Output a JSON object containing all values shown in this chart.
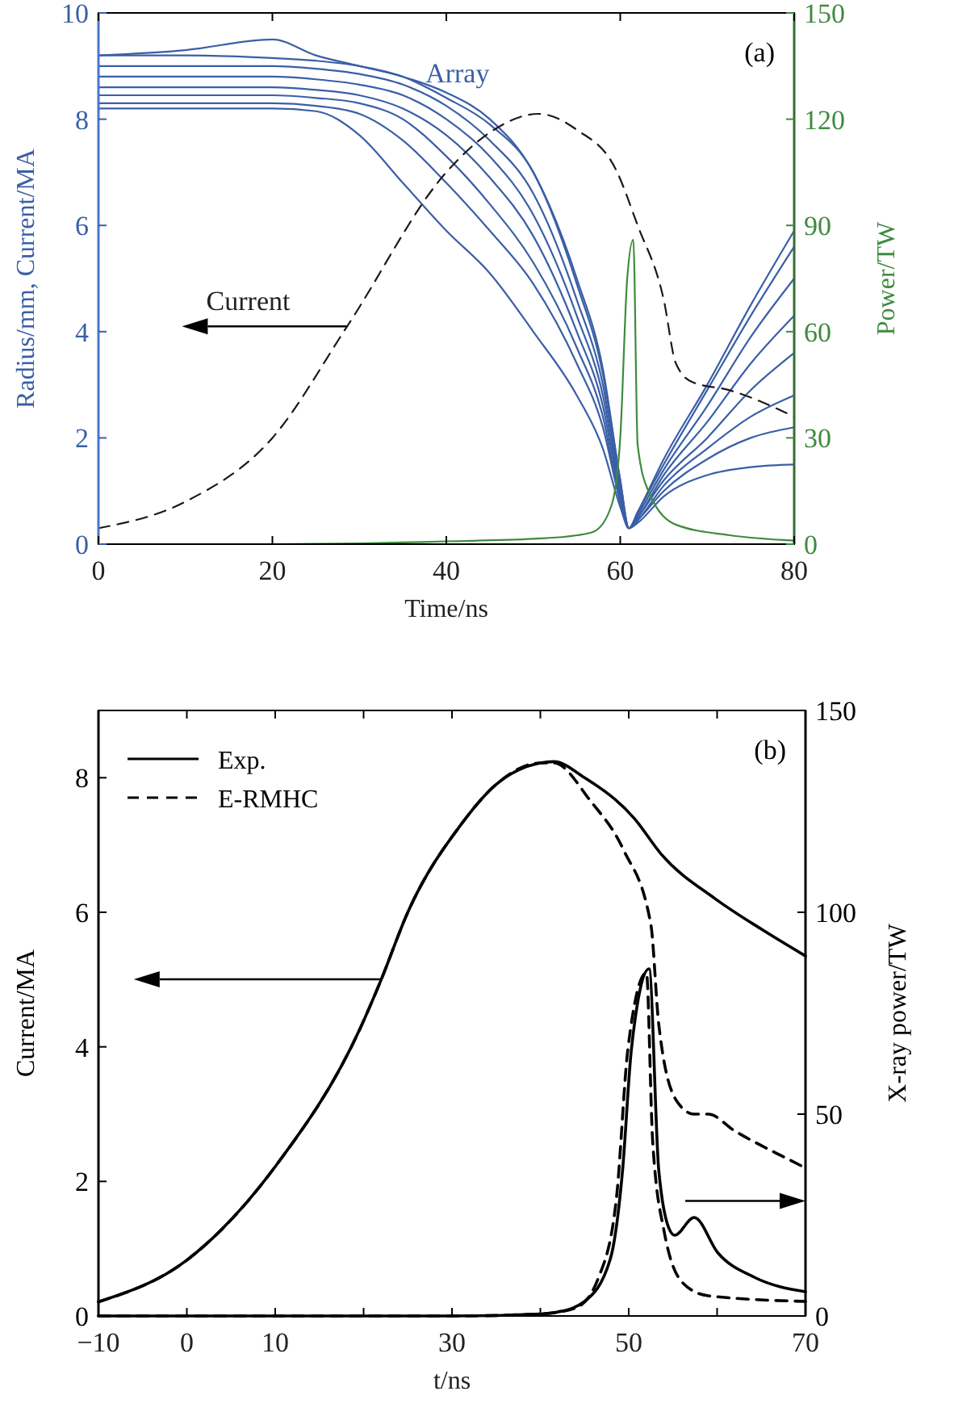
{
  "chart_data": [
    {
      "type": "line",
      "title": "(a)",
      "xlabel": "Time/ns",
      "ylabel": "Radius/mm, Current/MA",
      "y2label": "Power/TW",
      "x": [
        0,
        10,
        20,
        25,
        30,
        35,
        40,
        45,
        50,
        55,
        58,
        60,
        61,
        62,
        65,
        70,
        75,
        80
      ],
      "xlim": [
        0,
        80
      ],
      "xticks": [
        0,
        20,
        40,
        60,
        80
      ],
      "ylim": [
        0,
        10
      ],
      "yticks": [
        0,
        2,
        4,
        6,
        8,
        10
      ],
      "y2lim": [
        0,
        150
      ],
      "y2ticks": [
        0,
        30,
        60,
        90,
        120,
        150
      ],
      "legend": false,
      "grid": false,
      "annotations": [
        "Array",
        {
          "text": "Current",
          "x": 28.6,
          "y": 4.1
        }
      ],
      "series": [
        {
          "color": "#3a5fa6",
          "values": [
            9.2,
            9.3,
            9.5,
            9.2,
            9.0,
            8.8,
            8.5,
            8.0,
            7.0,
            5.0,
            3.3,
            1.2,
            0.3,
            0.6,
            1.6,
            3.0,
            4.5,
            5.9
          ]
        },
        {
          "color": "#3a5fa6",
          "values": [
            9.2,
            9.2,
            9.15,
            9.1,
            9.0,
            8.8,
            8.4,
            7.9,
            7.0,
            4.9,
            3.2,
            1.2,
            0.3,
            0.6,
            1.5,
            2.9,
            4.3,
            5.6
          ]
        },
        {
          "color": "#3a5fa6",
          "values": [
            9.0,
            9.0,
            9.0,
            8.95,
            8.85,
            8.65,
            8.25,
            7.6,
            6.6,
            4.6,
            3.0,
            1.1,
            0.3,
            0.55,
            1.4,
            2.6,
            3.9,
            5.0
          ]
        },
        {
          "color": "#3a5fa6",
          "values": [
            8.8,
            8.8,
            8.8,
            8.75,
            8.65,
            8.45,
            8.0,
            7.3,
            6.2,
            4.3,
            2.8,
            1.0,
            0.3,
            0.5,
            1.3,
            2.3,
            3.4,
            4.3
          ]
        },
        {
          "color": "#3a5fa6",
          "values": [
            8.6,
            8.6,
            8.6,
            8.55,
            8.45,
            8.2,
            7.7,
            6.9,
            5.8,
            4.0,
            2.6,
            0.9,
            0.3,
            0.5,
            1.2,
            2.0,
            2.9,
            3.6
          ]
        },
        {
          "color": "#3a5fa6",
          "values": [
            8.45,
            8.45,
            8.45,
            8.4,
            8.3,
            8.0,
            7.3,
            6.4,
            5.3,
            3.7,
            2.4,
            0.8,
            0.3,
            0.45,
            1.1,
            1.8,
            2.4,
            2.8
          ]
        },
        {
          "color": "#3a5fa6",
          "values": [
            8.3,
            8.3,
            8.3,
            8.25,
            8.1,
            7.6,
            6.8,
            5.9,
            4.9,
            3.4,
            2.2,
            0.8,
            0.3,
            0.45,
            1.0,
            1.6,
            2.0,
            2.2
          ]
        },
        {
          "color": "#3a5fa6",
          "values": [
            8.2,
            8.2,
            8.2,
            8.15,
            7.7,
            6.8,
            5.9,
            5.1,
            4.0,
            2.8,
            1.8,
            0.7,
            0.3,
            0.4,
            0.9,
            1.3,
            1.45,
            1.5
          ]
        },
        {
          "color": "#1a1a1a",
          "line_style": "dashed",
          "x": [
            0,
            10,
            20,
            28.6,
            40,
            45,
            50.6,
            55,
            59.5,
            62,
            65,
            66.4,
            68.3,
            72.5,
            80
          ],
          "values": [
            0.3,
            0.8,
            2.0,
            4.1,
            7.0,
            7.75,
            8.1,
            7.8,
            7.05,
            6.0,
            4.6,
            3.4,
            3.05,
            2.9,
            2.4
          ]
        },
        {
          "color": "#3f8a3f",
          "axis": "y2",
          "x": [
            0,
            20,
            30,
            40,
            50,
            55,
            57,
            59,
            60,
            60.8,
            61.5,
            62,
            63.3,
            66.4,
            72.6,
            80
          ],
          "values": [
            0,
            0,
            0.2,
            0.8,
            1.5,
            2.5,
            3.6,
            11,
            30,
            75,
            86,
            28,
            14.6,
            5.5,
            2.5,
            1
          ]
        }
      ]
    },
    {
      "type": "line",
      "title": "(b)",
      "xlabel": "t/ns",
      "ylabel": "Current/MA",
      "y2label": "X-ray power/TW",
      "xlim": [
        -10,
        70
      ],
      "xticks": [
        {
          "value": -10,
          "label": "−10"
        },
        0,
        10,
        {
          "value": 20,
          "label": null
        },
        30,
        {
          "value": 40,
          "label": null
        },
        50,
        {
          "value": 60,
          "label": null
        },
        70
      ],
      "ylim": [
        0,
        9
      ],
      "yticks": [
        0,
        2,
        4,
        6,
        8
      ],
      "y2lim": [
        0,
        150
      ],
      "y2ticks": [
        0,
        50,
        100,
        150
      ],
      "legend": "top left",
      "grid": false,
      "series": [
        {
          "name": "Exp.",
          "color": "#000000",
          "line_style": "solid",
          "x": [
            -10,
            0,
            10,
            19.7,
            21.9,
            25,
            31,
            35,
            40,
            41.5,
            45,
            50.6,
            53.7,
            59.8,
            65,
            70
          ],
          "values": [
            0.21,
            0.83,
            2.22,
            4.3,
            4.97,
            6.0,
            7.3,
            7.9,
            8.22,
            8.24,
            8.0,
            7.4,
            6.86,
            6.2,
            5.75,
            5.35
          ]
        },
        {
          "name": "E-RMHC",
          "color": "#000000",
          "line_style": "dashed",
          "x": [
            -10,
            0,
            10,
            19.7,
            21.9,
            25,
            31,
            35,
            40,
            41.5,
            45.7,
            49.4,
            52.5,
            53.4,
            55.4,
            57.4,
            59,
            62,
            68.2,
            70
          ],
          "values": [
            0.21,
            0.83,
            2.22,
            4.3,
            4.97,
            6.0,
            7.3,
            7.9,
            8.22,
            8.22,
            7.65,
            6.93,
            5.82,
            4.33,
            3.2,
            3.0,
            3.0,
            2.75,
            2.32,
            2.2
          ]
        },
        {
          "color": "#000000",
          "line_style": "solid",
          "axis": "y2",
          "x": [
            -10,
            30,
            40,
            42,
            45,
            47.9,
            49.3,
            50.3,
            52.3,
            53.4,
            54.7,
            55.2,
            57.4,
            60.1,
            64.2,
            70
          ],
          "values": [
            0,
            0,
            0.5,
            1,
            3.6,
            14,
            36,
            66,
            86,
            36,
            21,
            20,
            24.4,
            15.6,
            9.6,
            6
          ]
        },
        {
          "color": "#000000",
          "line_style": "dashed",
          "axis": "y2",
          "x": [
            -10,
            30,
            40,
            44,
            46.6,
            48.6,
            49.9,
            52,
            52.7,
            54,
            56.2,
            59,
            70
          ],
          "values": [
            0,
            0,
            0.5,
            2,
            9.6,
            29,
            66,
            85,
            43.6,
            21,
            8,
            5,
            3.6
          ]
        }
      ]
    }
  ]
}
